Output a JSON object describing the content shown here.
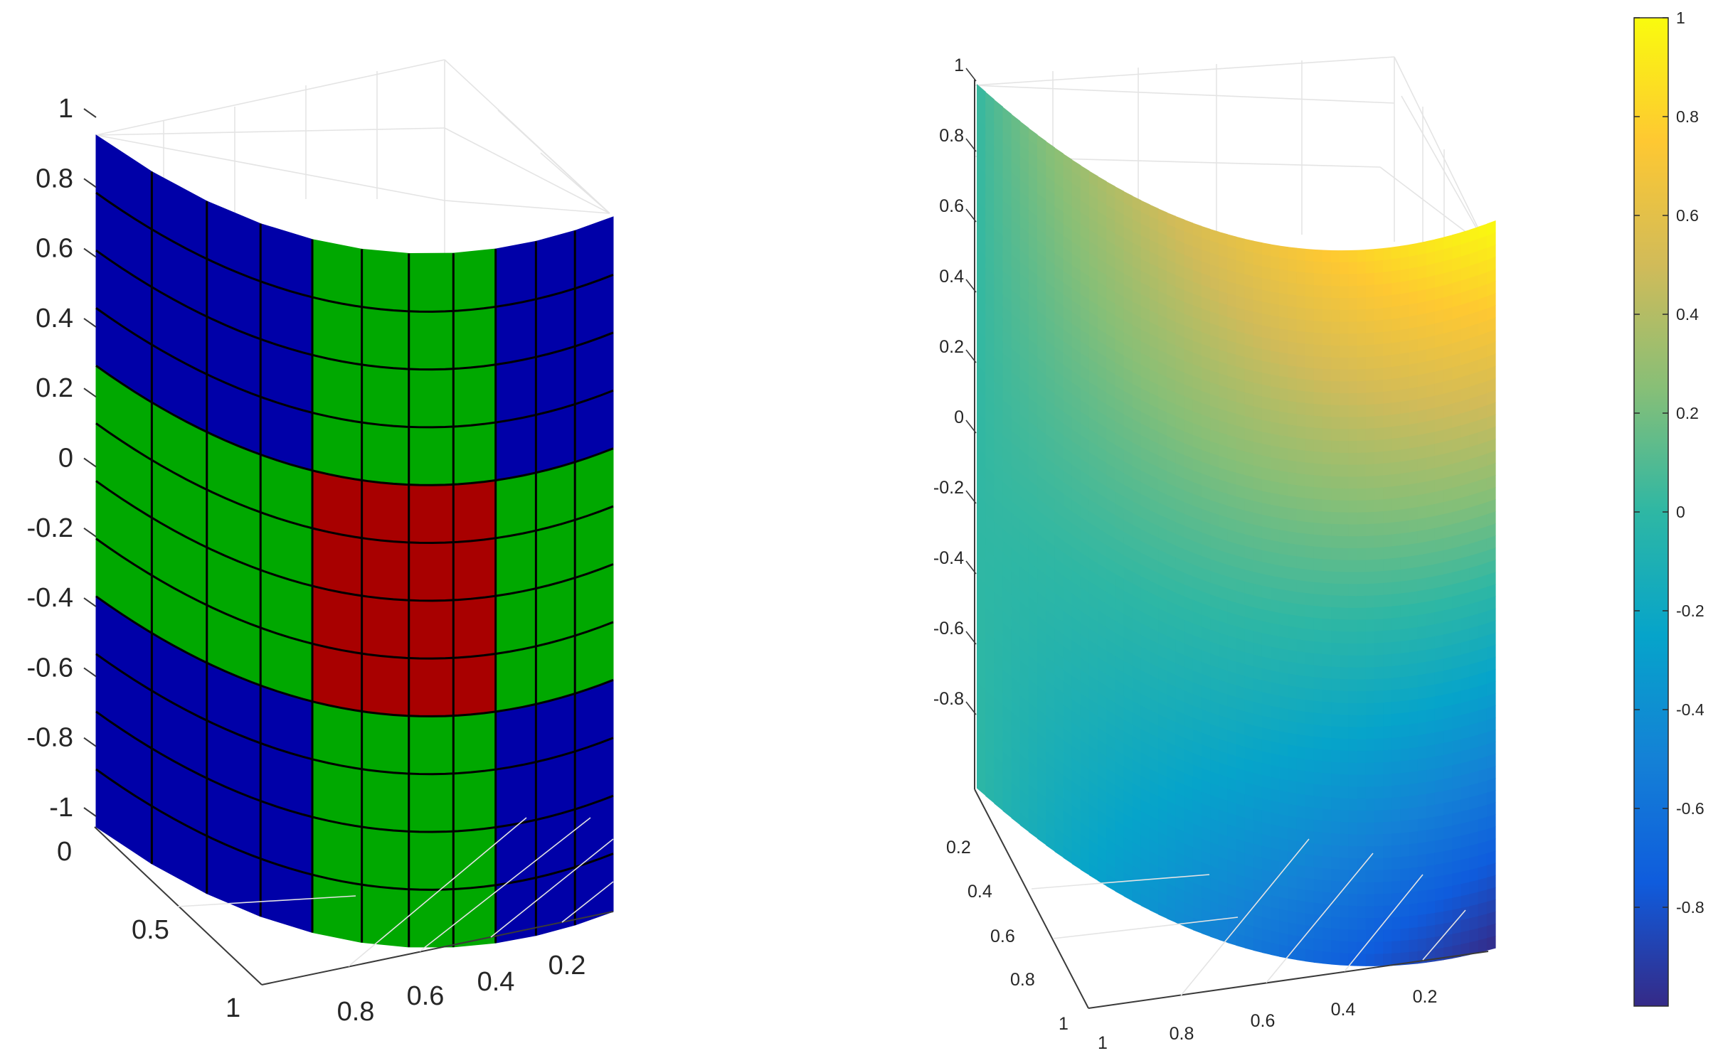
{
  "chart_data": [
    {
      "type": "heatmap",
      "name": "",
      "surface": "cylindrical quarter surface, patch-colored",
      "z_range": [
        -1,
        1
      ],
      "z_ticks": [
        "1",
        "0.8",
        "0.6",
        "0.4",
        "0.2",
        "0",
        "-0.2",
        "-0.4",
        "-0.6",
        "-0.8",
        "-1"
      ],
      "y_ticks": [
        "0",
        "0.5",
        "1"
      ],
      "x_ticks": [
        "0.8",
        "0.6",
        "0.4",
        "0.2"
      ],
      "mesh": {
        "columns": 11,
        "rows": 12
      },
      "column_groups": [
        4,
        4,
        3
      ],
      "row_groups": [
        4,
        4,
        4
      ],
      "patch_colors": [
        [
          "blue",
          "green",
          "blue"
        ],
        [
          "green",
          "red",
          "green"
        ],
        [
          "blue",
          "green",
          "blue"
        ]
      ],
      "palette": {
        "blue": "#0000a8",
        "green": "#00a800",
        "red": "#a80000",
        "mesh": "#000000"
      }
    },
    {
      "type": "heatmap",
      "name": "",
      "surface": "cylindrical quarter surface, smooth field",
      "z_ticks": [
        "1",
        "0.8",
        "0.6",
        "0.4",
        "0.2",
        "0",
        "-0.2",
        "-0.4",
        "-0.6",
        "-0.8"
      ],
      "y_ticks": [
        "0.2",
        "0.4",
        "0.6",
        "0.8",
        "1"
      ],
      "x_ticks": [
        "1",
        "0.8",
        "0.6",
        "0.4",
        "0.2"
      ],
      "colorbar": {
        "range": [
          -1,
          1
        ],
        "ticks": [
          "1",
          "0.8",
          "0.6",
          "0.4",
          "0.2",
          "0",
          "-0.2",
          "-0.4",
          "-0.6",
          "-0.8"
        ],
        "colormap": "parula",
        "stops": [
          "#352a87",
          "#0f5cdd",
          "#1481d6",
          "#06a4ca",
          "#2eb7a4",
          "#87bf77",
          "#d1bb59",
          "#fec832",
          "#f9fb0e"
        ]
      },
      "corner_values": {
        "top_left": 0.0,
        "top_right": 1.0,
        "bottom_left": 0.0,
        "bottom_right": -1.0
      }
    }
  ]
}
